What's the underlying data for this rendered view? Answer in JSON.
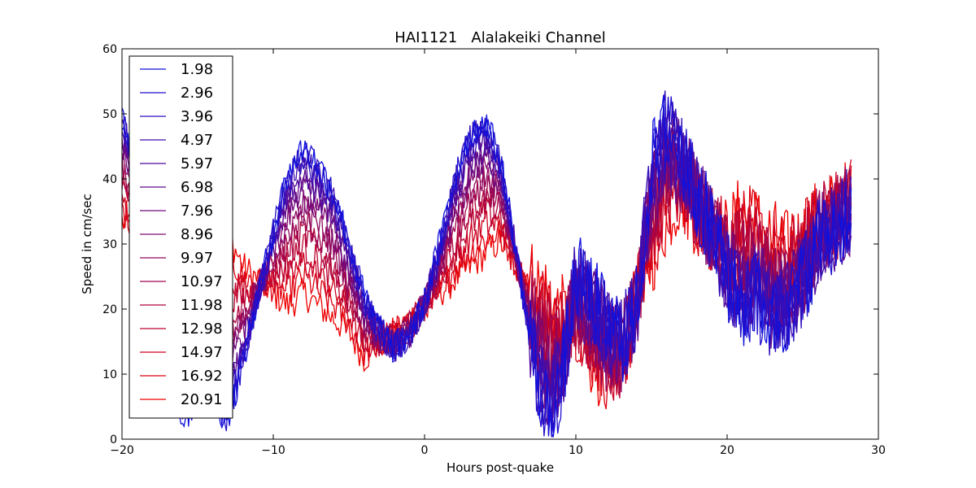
{
  "chart_data": {
    "type": "line",
    "title": "HAI1121   Alalakeiki Channel",
    "xlabel": "Hours post-quake",
    "ylabel": "Speed in cm/sec",
    "xlim": [
      -20,
      30
    ],
    "ylim": [
      0,
      60
    ],
    "xticks": [
      -20,
      -10,
      0,
      10,
      20,
      30
    ],
    "xtick_labels": [
      "−20",
      "−10",
      "0",
      "10",
      "20",
      "30"
    ],
    "yticks": [
      0,
      10,
      20,
      30,
      40,
      50,
      60
    ],
    "ytick_labels": [
      "0",
      "10",
      "20",
      "30",
      "40",
      "50",
      "60"
    ],
    "grid": false,
    "legend_position": "top-left",
    "color_start": "#1010dd",
    "color_end": "#ee0000",
    "series": [
      {
        "name": "1.98"
      },
      {
        "name": "2.96"
      },
      {
        "name": "3.96"
      },
      {
        "name": "4.97"
      },
      {
        "name": "5.97"
      },
      {
        "name": "6.98"
      },
      {
        "name": "7.96"
      },
      {
        "name": "8.96"
      },
      {
        "name": "9.97"
      },
      {
        "name": "10.97"
      },
      {
        "name": "11.98"
      },
      {
        "name": "12.98"
      },
      {
        "name": "14.97"
      },
      {
        "name": "16.92"
      },
      {
        "name": "20.91"
      }
    ],
    "x_start": -20,
    "x_end": 28.2,
    "shallow_profile": {
      "x": [
        -20,
        -19,
        -18,
        -17,
        -16,
        -15,
        -14,
        -13,
        -12,
        -11,
        -10,
        -9,
        -8,
        -7,
        -6,
        -5,
        -4,
        -3,
        -2,
        -1,
        0,
        1,
        2,
        3,
        4,
        5,
        6,
        7,
        8,
        9,
        10,
        11,
        12,
        13,
        14,
        15,
        16,
        17,
        18,
        19,
        20,
        21,
        22,
        23,
        24,
        25,
        26,
        27,
        28,
        28.2
      ],
      "y": [
        50,
        42,
        28,
        14,
        3,
        6,
        6,
        3,
        12,
        22,
        32,
        41,
        45,
        42,
        38,
        30,
        22,
        17,
        14,
        16,
        21,
        30,
        40,
        47,
        49,
        43,
        30,
        15,
        5,
        8,
        25,
        22,
        18,
        15,
        20,
        42,
        48,
        44,
        38,
        32,
        25,
        20,
        22,
        18,
        20,
        24,
        30,
        32,
        35,
        35
      ]
    },
    "deep_profile": {
      "x": [
        -20,
        -19,
        -18,
        -17,
        -16,
        -15,
        -14,
        -13,
        -12,
        -11,
        -10,
        -9,
        -8,
        -7,
        -6,
        -5,
        -4,
        -3,
        -2,
        -1,
        0,
        1,
        2,
        3,
        4,
        5,
        6,
        7,
        8,
        9,
        10,
        11,
        12,
        13,
        14,
        15,
        16,
        17,
        18,
        19,
        20,
        21,
        22,
        23,
        24,
        25,
        26,
        27,
        28,
        28.2
      ],
      "y": [
        35,
        33,
        30,
        28,
        20,
        15,
        18,
        33,
        28,
        26,
        24,
        22,
        24,
        22,
        20,
        18,
        14,
        16,
        18,
        20,
        22,
        24,
        26,
        28,
        30,
        32,
        28,
        26,
        24,
        20,
        20,
        15,
        12,
        14,
        22,
        30,
        36,
        40,
        36,
        34,
        32,
        36,
        34,
        32,
        30,
        32,
        35,
        36,
        38,
        38
      ]
    }
  }
}
